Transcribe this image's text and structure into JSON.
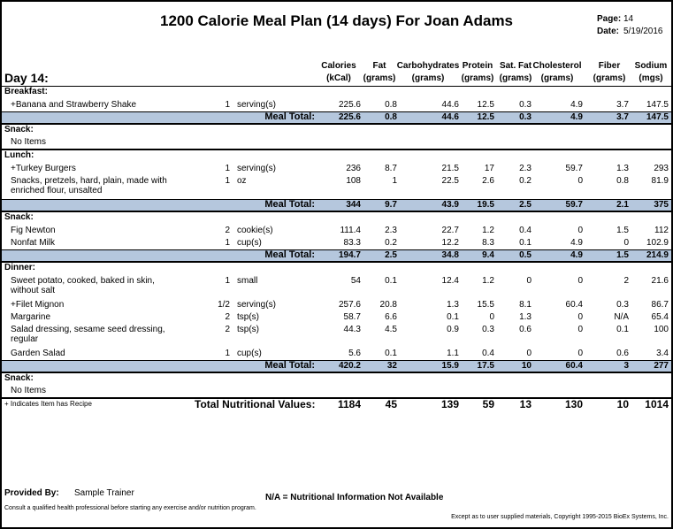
{
  "title": "1200 Calorie Meal Plan (14 days) For Joan Adams",
  "page_label": "Page:",
  "page_value": "14",
  "date_label": "Date:",
  "date_value": "5/19/2016",
  "day_label": "Day 14:",
  "columns": [
    {
      "l1": "Calories",
      "l2": "(kCal)"
    },
    {
      "l1": "Fat",
      "l2": "(grams)"
    },
    {
      "l1": "Carbohydrates",
      "l2": "(grams)"
    },
    {
      "l1": "Protein",
      "l2": "(grams)"
    },
    {
      "l1": "Sat. Fat",
      "l2": "(grams)"
    },
    {
      "l1": "Cholesterol",
      "l2": "(grams)"
    },
    {
      "l1": "Fiber",
      "l2": "(grams)"
    },
    {
      "l1": "Sodium",
      "l2": "(mgs)"
    }
  ],
  "meal_total_label": "Meal Total:",
  "sections": [
    {
      "name": "Breakfast:",
      "items": [
        {
          "n1": "+Banana and Strawberry Shake",
          "n2": "",
          "qty": "1",
          "unit": "serving(s)",
          "v": [
            "225.6",
            "0.8",
            "44.6",
            "12.5",
            "0.3",
            "4.9",
            "3.7",
            "147.5"
          ]
        }
      ],
      "total": [
        "225.6",
        "0.8",
        "44.6",
        "12.5",
        "0.3",
        "4.9",
        "3.7",
        "147.5"
      ]
    },
    {
      "name": "Snack:",
      "empty": "No Items"
    },
    {
      "name": "Lunch:",
      "items": [
        {
          "n1": "+Turkey Burgers",
          "n2": "",
          "qty": "1",
          "unit": "serving(s)",
          "v": [
            "236",
            "8.7",
            "21.5",
            "17",
            "2.3",
            "59.7",
            "1.3",
            "293"
          ]
        },
        {
          "n1": "Snacks, pretzels, hard, plain, made with",
          "n2": "enriched flour, unsalted",
          "qty": "1",
          "unit": "oz",
          "v": [
            "108",
            "1",
            "22.5",
            "2.6",
            "0.2",
            "0",
            "0.8",
            "81.9"
          ]
        }
      ],
      "total": [
        "344",
        "9.7",
        "43.9",
        "19.5",
        "2.5",
        "59.7",
        "2.1",
        "375"
      ]
    },
    {
      "name": "Snack:",
      "items": [
        {
          "n1": "Fig Newton",
          "n2": "",
          "qty": "2",
          "unit": "cookie(s)",
          "v": [
            "111.4",
            "2.3",
            "22.7",
            "1.2",
            "0.4",
            "0",
            "1.5",
            "112"
          ]
        },
        {
          "n1": "Nonfat Milk",
          "n2": "",
          "qty": "1",
          "unit": "cup(s)",
          "v": [
            "83.3",
            "0.2",
            "12.2",
            "8.3",
            "0.1",
            "4.9",
            "0",
            "102.9"
          ]
        }
      ],
      "total": [
        "194.7",
        "2.5",
        "34.8",
        "9.4",
        "0.5",
        "4.9",
        "1.5",
        "214.9"
      ]
    },
    {
      "name": "Dinner:",
      "items": [
        {
          "n1": "Sweet potato, cooked, baked in skin,",
          "n2": "without salt",
          "qty": "1",
          "unit": "small",
          "v": [
            "54",
            "0.1",
            "12.4",
            "1.2",
            "0",
            "0",
            "2",
            "21.6"
          ]
        },
        {
          "n1": "+Filet Mignon",
          "n2": "",
          "qty": "1/2",
          "unit": "serving(s)",
          "v": [
            "257.6",
            "20.8",
            "1.3",
            "15.5",
            "8.1",
            "60.4",
            "0.3",
            "86.7"
          ]
        },
        {
          "n1": "Margarine",
          "n2": "",
          "qty": "2",
          "unit": "tsp(s)",
          "v": [
            "58.7",
            "6.6",
            "0.1",
            "0",
            "1.3",
            "0",
            "N/A",
            "65.4"
          ]
        },
        {
          "n1": "Salad dressing, sesame seed dressing,",
          "n2": "regular",
          "qty": "2",
          "unit": "tsp(s)",
          "v": [
            "44.3",
            "4.5",
            "0.9",
            "0.3",
            "0.6",
            "0",
            "0.1",
            "100"
          ]
        },
        {
          "n1": "Garden Salad",
          "n2": "",
          "qty": "1",
          "unit": "cup(s)",
          "v": [
            "5.6",
            "0.1",
            "1.1",
            "0.4",
            "0",
            "0",
            "0.6",
            "3.4"
          ]
        }
      ],
      "total": [
        "420.2",
        "32",
        "15.9",
        "17.5",
        "10",
        "60.4",
        "3",
        "277"
      ]
    },
    {
      "name": "Snack:",
      "empty": "No Items"
    }
  ],
  "recipe_note": "+ Indicates Item has Recipe",
  "grand_total_label": "Total Nutritional Values:",
  "grand_total": [
    "1184",
    "45",
    "139",
    "59",
    "13",
    "130",
    "10",
    "1014"
  ],
  "provided_by_label": "Provided By:",
  "provided_by_value": "Sample Trainer",
  "na_note": "N/A = Nutritional Information Not Available",
  "consult_note": "Consult a qualified health professional before starting any exercise and/or nutrition program.",
  "copyright": "Except as to user supplied materials, Copyright 1995-2015 BioEx Systems, Inc."
}
